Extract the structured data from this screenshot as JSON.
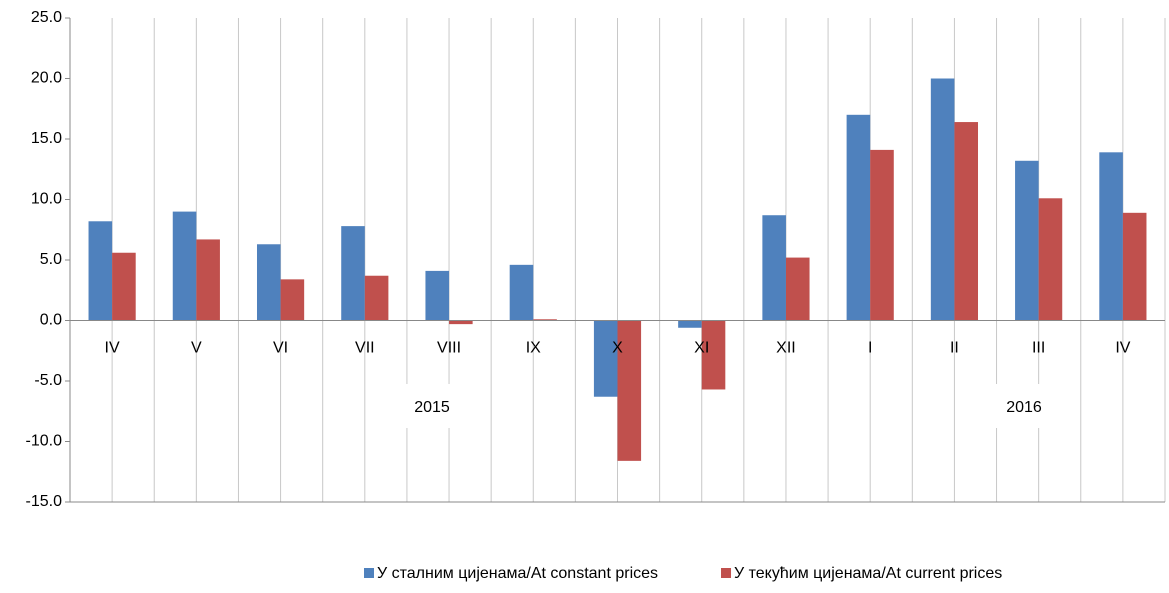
{
  "chart_data": {
    "type": "bar",
    "categories": [
      "IV",
      "V",
      "VI",
      "VII",
      "VIII",
      "IX",
      "X",
      "XI",
      "XII",
      "I",
      "II",
      "III",
      "IV"
    ],
    "groups": [
      "2015",
      "2016"
    ],
    "series": [
      {
        "name": "У сталним цијенама/At constant prices",
        "color": "#4f81bd",
        "values": [
          8.2,
          9.0,
          6.3,
          7.8,
          4.1,
          4.6,
          -6.3,
          -0.6,
          8.7,
          17.0,
          20.0,
          13.2,
          13.9
        ]
      },
      {
        "name": "У текућим цијенама/At current prices",
        "color": "#c0504d",
        "values": [
          5.6,
          6.7,
          3.4,
          3.7,
          -0.3,
          0.1,
          -11.6,
          -5.7,
          5.2,
          14.1,
          16.4,
          10.1,
          8.9
        ]
      }
    ],
    "ylim": [
      -15,
      25
    ],
    "yticks": [
      {
        "value": -15,
        "label": "-15.0"
      },
      {
        "value": -10,
        "label": "-10.0"
      },
      {
        "value": -5,
        "label": "-5.0"
      },
      {
        "value": 0,
        "label": "0.0"
      },
      {
        "value": 5,
        "label": "5.0"
      },
      {
        "value": 10,
        "label": "10.0"
      },
      {
        "value": 15,
        "label": "15.0"
      },
      {
        "value": 20,
        "label": "20.0"
      },
      {
        "value": 25,
        "label": "25.0"
      }
    ],
    "legend": "bottom"
  }
}
